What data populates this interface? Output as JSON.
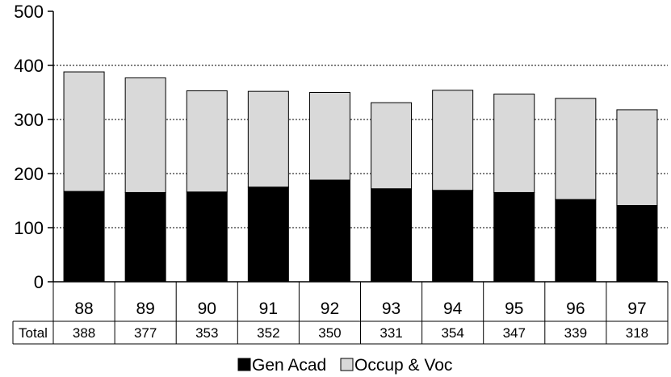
{
  "chart_data": {
    "type": "bar",
    "stacked": true,
    "categories": [
      "88",
      "89",
      "90",
      "91",
      "92",
      "93",
      "94",
      "95",
      "96",
      "97"
    ],
    "series": [
      {
        "name": "Gen Acad",
        "color": "#000000",
        "values": [
          167,
          165,
          166,
          175,
          188,
          172,
          169,
          165,
          152,
          141
        ]
      },
      {
        "name": "Occup & Voc",
        "color": "#d9d9d9",
        "values": [
          221,
          212,
          187,
          177,
          162,
          159,
          185,
          182,
          187,
          177
        ]
      }
    ],
    "totals_label": "Total",
    "totals": [
      388,
      377,
      353,
      352,
      350,
      331,
      354,
      347,
      339,
      318
    ],
    "yticks": [
      "0",
      "100",
      "200",
      "300",
      "400",
      "500"
    ],
    "ylim": [
      0,
      500
    ],
    "grid": true,
    "legend_position": "bottom"
  }
}
